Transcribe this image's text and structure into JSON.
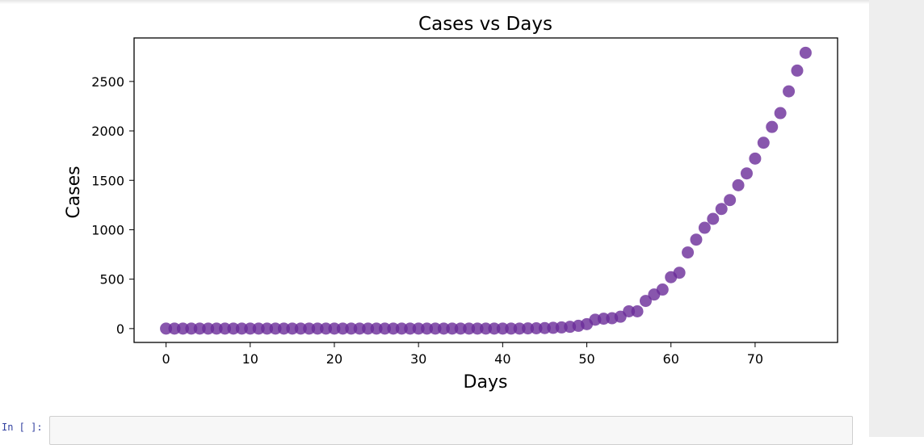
{
  "chart_data": {
    "type": "scatter",
    "title": "Cases vs Days",
    "xlabel": "Days",
    "ylabel": "Cases",
    "xlim": [
      -3.8,
      79.8
    ],
    "ylim": [
      -140,
      2940
    ],
    "xticks": [
      0,
      10,
      20,
      30,
      40,
      50,
      60,
      70
    ],
    "yticks": [
      0,
      500,
      1000,
      1500,
      2000,
      2500
    ],
    "marker_color": "#6a2c99",
    "marker_alpha": 0.8,
    "x": [
      0,
      1,
      2,
      3,
      4,
      5,
      6,
      7,
      8,
      9,
      10,
      11,
      12,
      13,
      14,
      15,
      16,
      17,
      18,
      19,
      20,
      21,
      22,
      23,
      24,
      25,
      26,
      27,
      28,
      29,
      30,
      31,
      32,
      33,
      34,
      35,
      36,
      37,
      38,
      39,
      40,
      41,
      42,
      43,
      44,
      45,
      46,
      47,
      48,
      49,
      50,
      51,
      52,
      53,
      54,
      55,
      56,
      57,
      58,
      59,
      60,
      61,
      62,
      63,
      64,
      65,
      66,
      67,
      68,
      69,
      70,
      71,
      72,
      73,
      74,
      75,
      76
    ],
    "y": [
      0,
      0,
      0,
      0,
      0,
      0,
      0,
      0,
      0,
      0,
      0,
      0,
      0,
      0,
      0,
      0,
      0,
      0,
      0,
      0,
      0,
      0,
      0,
      0,
      0,
      0,
      0,
      0,
      0,
      0,
      0,
      0,
      0,
      0,
      0,
      0,
      0,
      0,
      0,
      0,
      0,
      0,
      0,
      2,
      3,
      5,
      8,
      12,
      18,
      28,
      45,
      90,
      100,
      105,
      120,
      175,
      175,
      280,
      345,
      395,
      520,
      565,
      770,
      900,
      1020,
      1110,
      1210,
      1300,
      1450,
      1570,
      1720,
      1880,
      2040,
      2180,
      2400,
      2610,
      2790
    ]
  },
  "notebook": {
    "next_cell_prompt": "In [ ]:"
  }
}
